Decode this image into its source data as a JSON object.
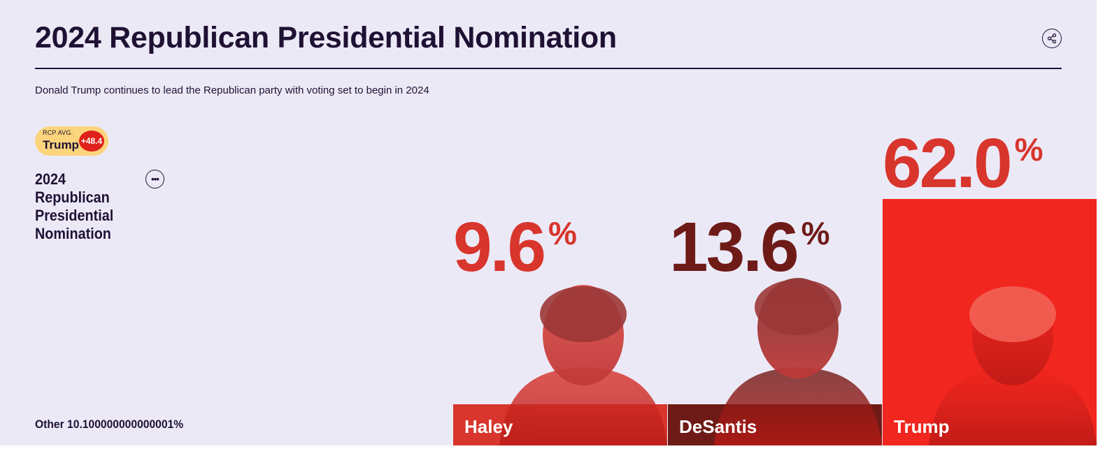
{
  "header": {
    "title": "2024 Republican Presidential Nomination",
    "subtitle": "Donald Trump continues to lead the Republican party with voting set to begin in 2024"
  },
  "rcp_badge": {
    "label": "RCP AVG.",
    "leader": "Trump",
    "spread": "+48.4"
  },
  "race": {
    "name": "2024 Republican Presidential Nomination",
    "other_label": "Other 10.100000000000001%"
  },
  "colors": {
    "background": "#ece9f7",
    "ink": "#1f1134",
    "haley": "#d8352c",
    "desantis": "#6e1b17",
    "trump": "#f1261e",
    "badge": "#fbd47c"
  },
  "icons": {
    "share": "share-icon",
    "more": "more-dots-icon"
  },
  "chart_data": {
    "type": "bar",
    "categories": [
      "Haley",
      "DeSantis",
      "Trump"
    ],
    "values": [
      9.6,
      13.6,
      62.0
    ],
    "value_labels": [
      "9.6",
      "13.6",
      "62.0"
    ],
    "unit": "%"
  }
}
